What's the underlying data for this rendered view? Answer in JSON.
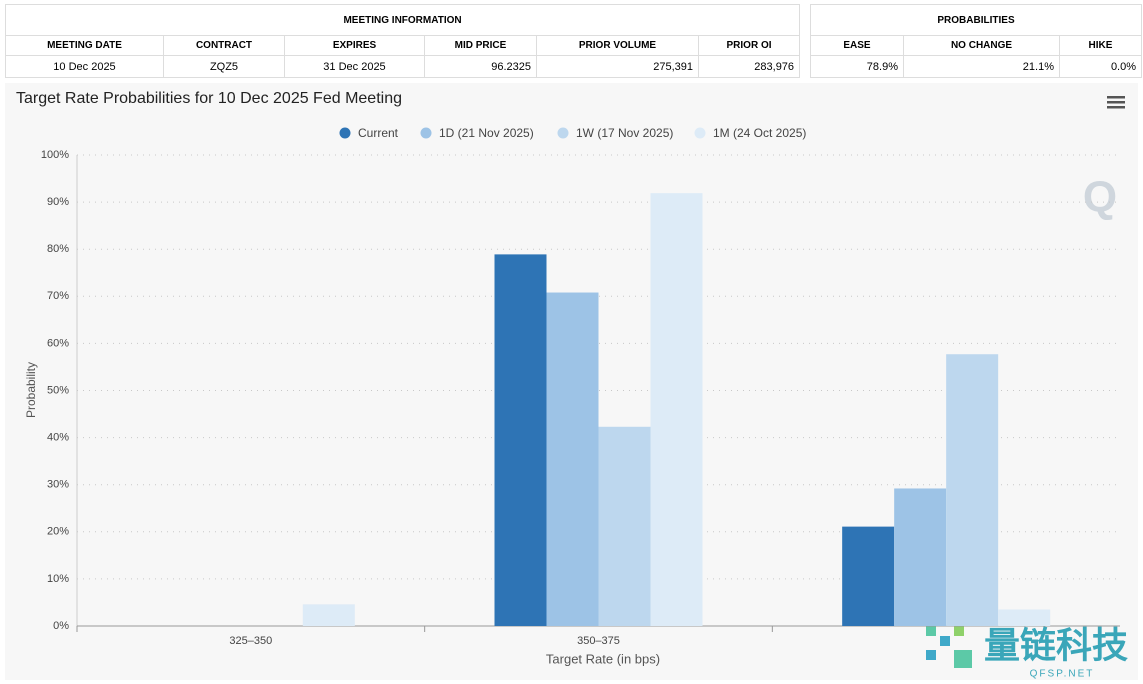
{
  "meeting_table": {
    "title": "MEETING INFORMATION",
    "headers": [
      "MEETING DATE",
      "CONTRACT",
      "EXPIRES",
      "MID PRICE",
      "PRIOR VOLUME",
      "PRIOR OI"
    ],
    "row": [
      "10 Dec 2025",
      "ZQZ5",
      "31 Dec 2025",
      "96.2325",
      "275,391",
      "283,976"
    ]
  },
  "probability_table": {
    "title": "PROBABILITIES",
    "headers": [
      "EASE",
      "NO CHANGE",
      "HIKE"
    ],
    "row": [
      "78.9%",
      "21.1%",
      "0.0%"
    ]
  },
  "chart_data": {
    "type": "bar",
    "title": "Target Rate Probabilities for 10 Dec 2025 Fed Meeting",
    "x_label": "Target Rate (in bps)",
    "y_label": "Probability",
    "categories": [
      "325–350",
      "350–375",
      null
    ],
    "series": [
      {
        "name": "Current",
        "color": "#2e74b5",
        "values": [
          0,
          78.9,
          21.1
        ]
      },
      {
        "name": "1D (21 Nov 2025)",
        "color": "#9dc3e6",
        "values": [
          0,
          70.8,
          29.2
        ]
      },
      {
        "name": "1W (17 Nov 2025)",
        "color": "#bdd7ee",
        "values": [
          0,
          42.3,
          57.7
        ]
      },
      {
        "name": "1M (24 Oct 2025)",
        "color": "#ddebf7",
        "values": [
          4.6,
          91.9,
          3.5
        ]
      }
    ],
    "ylim": [
      0,
      100
    ],
    "yticks": [
      {
        "value": 0,
        "label": "0%"
      },
      {
        "value": 10,
        "label": "10%"
      },
      {
        "value": 20,
        "label": "20%"
      },
      {
        "value": 30,
        "label": "30%"
      },
      {
        "value": 40,
        "label": "40%"
      },
      {
        "value": 50,
        "label": "50%"
      },
      {
        "value": 60,
        "label": "60%"
      },
      {
        "value": 70,
        "label": "70%"
      },
      {
        "value": 80,
        "label": "80%"
      },
      {
        "value": 90,
        "label": "90%"
      },
      {
        "value": 100,
        "label": "100%"
      }
    ],
    "grid": true,
    "legend": "top"
  },
  "logo": "Q",
  "watermark": {
    "name": "量链科技",
    "site": "QFSP.NET"
  }
}
